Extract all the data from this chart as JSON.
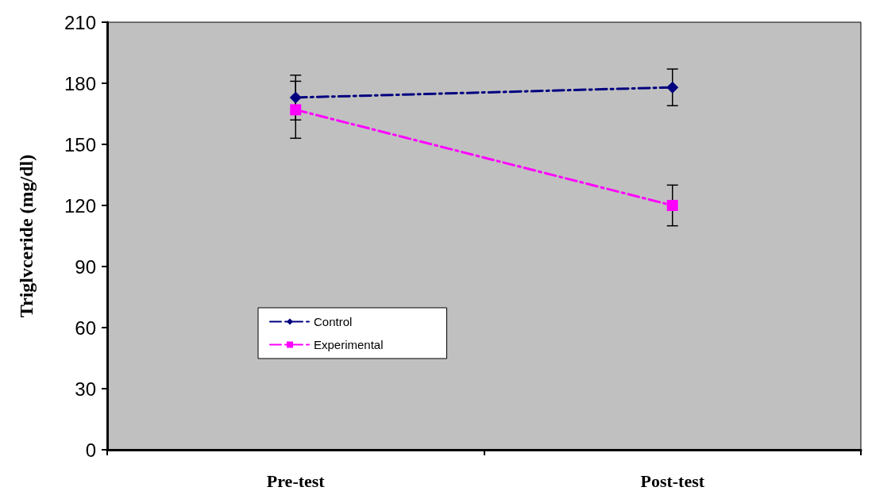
{
  "chart_data": {
    "type": "line",
    "ylabel": "Triglvceride (mg/dl)",
    "categories": [
      "Pre-test",
      "Post-test"
    ],
    "series": [
      {
        "name": "Control",
        "color": "#000080",
        "values": [
          173,
          178
        ],
        "errors": [
          11,
          9
        ],
        "marker": "diamond"
      },
      {
        "name": "Experimental",
        "color": "#ff00ff",
        "values": [
          167,
          120
        ],
        "errors": [
          14,
          10
        ],
        "marker": "square"
      }
    ],
    "ylim": [
      0,
      210
    ],
    "yticks": [
      0,
      30,
      60,
      90,
      120,
      150,
      180,
      210
    ],
    "grid": false,
    "legend": "bottom left",
    "line_style": "dashed"
  }
}
